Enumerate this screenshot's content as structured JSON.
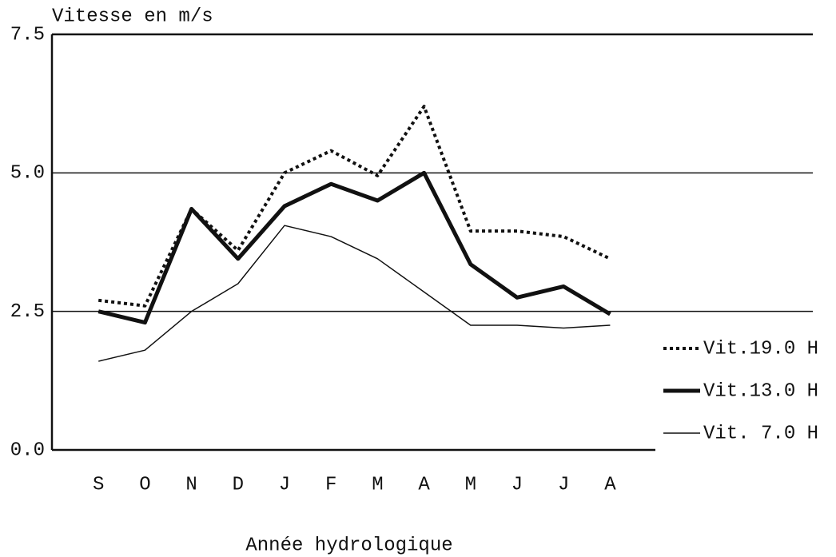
{
  "chart_data": {
    "type": "line",
    "title": "Vitesse en m/s",
    "x_label": "Année hydrologique",
    "categories": [
      "S",
      "O",
      "N",
      "D",
      "J",
      "F",
      "M",
      "A",
      "M",
      "J",
      "J",
      "A"
    ],
    "series": [
      {
        "name": "Vit.19.0 H",
        "color": "#111111",
        "style": "dotted",
        "width": 4,
        "values": [
          2.7,
          2.6,
          4.35,
          3.6,
          5.0,
          5.4,
          4.95,
          6.2,
          3.95,
          3.95,
          3.85,
          3.45
        ]
      },
      {
        "name": "Vit.13.0 H",
        "color": "#111111",
        "style": "solid",
        "width": 5,
        "values": [
          2.5,
          2.3,
          4.35,
          3.45,
          4.4,
          4.8,
          4.5,
          5.0,
          3.35,
          2.75,
          2.95,
          2.45
        ]
      },
      {
        "name": "Vit. 7.0 H",
        "color": "#111111",
        "style": "solid",
        "width": 1.5,
        "values": [
          1.6,
          1.8,
          2.5,
          3.0,
          4.05,
          3.85,
          3.45,
          2.85,
          2.25,
          2.25,
          2.2,
          2.25
        ]
      }
    ],
    "ylim": [
      0,
      7.5
    ],
    "yticks": [
      {
        "value": 0,
        "label": "0.0"
      },
      2.5,
      {
        "value": 5,
        "label": "5.0"
      },
      7.5
    ],
    "grid": true,
    "legend": "right"
  }
}
